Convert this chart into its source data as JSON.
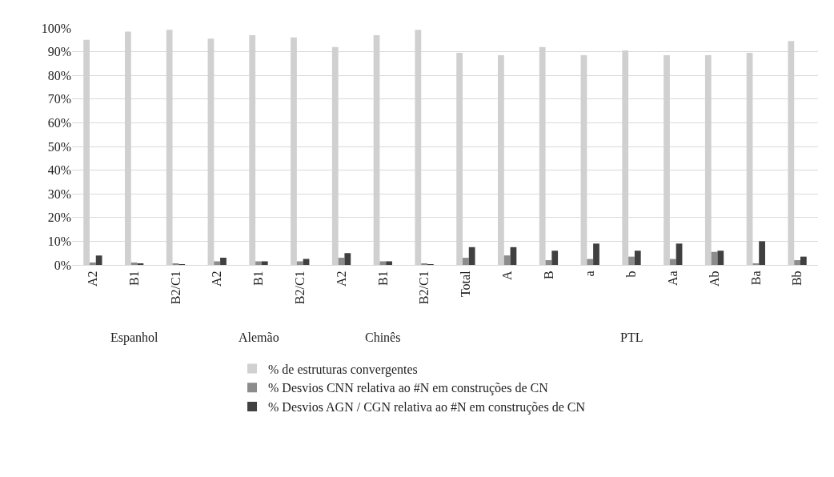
{
  "chart_data": [
    {
      "type": "bar",
      "xlabel": "Espanhol",
      "categories": [
        "A2",
        "B1",
        "B2/C1"
      ],
      "ylim": [
        0,
        100
      ],
      "yticks": [
        {
          "value": 0,
          "label": "0%"
        },
        {
          "value": 10,
          "label": "10%"
        },
        {
          "value": 20,
          "label": "20%"
        },
        {
          "value": 30,
          "label": "30%"
        },
        {
          "value": 40,
          "label": "40%"
        },
        {
          "value": 50,
          "label": "50%"
        },
        {
          "value": 60,
          "label": "60%"
        },
        {
          "value": 70,
          "label": "70%"
        },
        {
          "value": 80,
          "label": "80%"
        },
        {
          "value": 90,
          "label": "90%"
        },
        {
          "value": 100,
          "label": "100%"
        }
      ],
      "grid": "y",
      "legend": "bottom",
      "series": [
        {
          "name": "% de estruturas convergentes",
          "color": "#d0d0d0",
          "values": [
            95,
            98.5,
            99.2
          ]
        },
        {
          "name": "% Desvios CNN relativa ao #N em construções de CN",
          "color": "#8c8c8c",
          "values": [
            1,
            1,
            0.5
          ]
        },
        {
          "name": "% Desvios AGN / CGN relativa ao #N em construções de CN",
          "color": "#404040",
          "values": [
            4,
            0.5,
            0.3
          ]
        }
      ]
    },
    {
      "type": "bar",
      "xlabel": "Alemão",
      "categories": [
        "A2",
        "B1",
        "B2/C1"
      ],
      "ylim": [
        0,
        100
      ],
      "grid": "y",
      "tick_labels": "x",
      "series": [
        {
          "color": "#d0d0d0",
          "values": [
            95.5,
            97,
            96
          ]
        },
        {
          "color": "#8c8c8c",
          "values": [
            1.5,
            1.5,
            1.5
          ]
        },
        {
          "color": "#404040",
          "values": [
            3,
            1.5,
            2.5
          ]
        }
      ]
    },
    {
      "type": "bar",
      "xlabel": "Chinês",
      "categories": [
        "A2",
        "B1",
        "B2/C1"
      ],
      "ylim": [
        0,
        100
      ],
      "grid": "y",
      "tick_labels": "x",
      "series": [
        {
          "color": "#d0d0d0",
          "values": [
            92,
            97,
            99.2
          ]
        },
        {
          "color": "#8c8c8c",
          "values": [
            3,
            1.5,
            0.5
          ]
        },
        {
          "color": "#404040",
          "values": [
            5,
            1.5,
            0.3
          ]
        }
      ]
    },
    {
      "type": "bar",
      "xlabel": "PTL",
      "categories": [
        "Total",
        "A",
        "B",
        "a",
        "b",
        "Aa",
        "Ab",
        "Ba",
        "Bb"
      ],
      "ylim": [
        0,
        100
      ],
      "grid": "y",
      "tick_labels": "x",
      "series": [
        {
          "color": "#d0d0d0",
          "values": [
            89.5,
            88.5,
            92,
            88.5,
            90.5,
            88.5,
            88.5,
            89.5,
            94.5
          ]
        },
        {
          "color": "#8c8c8c",
          "values": [
            3,
            4,
            2,
            2.5,
            3.5,
            2.5,
            5.5,
            0.5,
            2
          ]
        },
        {
          "color": "#404040",
          "values": [
            7.5,
            7.5,
            6,
            9,
            6,
            9,
            6,
            10,
            3.5
          ]
        }
      ]
    }
  ]
}
